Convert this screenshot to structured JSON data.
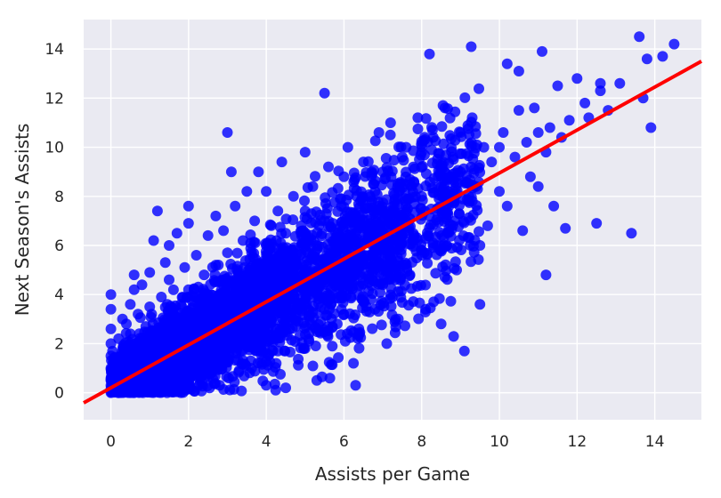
{
  "chart_data": {
    "type": "scatter",
    "title": "",
    "xlabel": "Assists per Game",
    "ylabel": "Next Season's Assists",
    "xlim": [
      -0.7,
      15.2
    ],
    "ylim": [
      -1.1,
      15.2
    ],
    "xticks": [
      "0",
      "2",
      "4",
      "6",
      "8",
      "10",
      "12",
      "14"
    ],
    "yticks": [
      "0",
      "2",
      "4",
      "6",
      "8",
      "10",
      "12",
      "14"
    ],
    "grid": true,
    "legend": "none",
    "point_color": "#0000ff",
    "line_color": "#ff0000",
    "background": "#eaeaf2",
    "regression_line": {
      "intercept": 0.2,
      "slope": 0.875
    },
    "series": [
      {
        "points": [
          [
            0.0,
            0.0
          ],
          [
            0.0,
            0.5
          ],
          [
            0.0,
            1.0
          ],
          [
            0.0,
            1.5
          ],
          [
            0.0,
            2.0
          ],
          [
            0.0,
            2.6
          ],
          [
            0.0,
            3.4
          ],
          [
            0.0,
            4.0
          ],
          [
            0.2,
            0.2
          ],
          [
            0.2,
            1.2
          ],
          [
            0.2,
            2.2
          ],
          [
            0.3,
            0.6
          ],
          [
            0.3,
            3.0
          ],
          [
            0.4,
            1.6
          ],
          [
            0.4,
            2.8
          ],
          [
            0.5,
            0.3
          ],
          [
            0.5,
            1.0
          ],
          [
            0.5,
            2.4
          ],
          [
            0.5,
            3.6
          ],
          [
            0.6,
            4.2
          ],
          [
            0.6,
            4.8
          ],
          [
            0.7,
            0.7
          ],
          [
            0.7,
            1.9
          ],
          [
            0.7,
            3.2
          ],
          [
            0.8,
            4.4
          ],
          [
            0.8,
            0.1
          ],
          [
            0.9,
            2.7
          ],
          [
            1.0,
            1.0
          ],
          [
            1.0,
            3.5
          ],
          [
            1.0,
            4.9
          ],
          [
            1.0,
            0.2
          ],
          [
            1.1,
            6.2
          ],
          [
            1.2,
            7.4
          ],
          [
            1.2,
            2.1
          ],
          [
            1.3,
            3.9
          ],
          [
            1.4,
            5.3
          ],
          [
            1.5,
            0.5
          ],
          [
            1.5,
            1.6
          ],
          [
            1.5,
            4.6
          ],
          [
            1.5,
            6.0
          ],
          [
            1.6,
            2.9
          ],
          [
            1.7,
            6.5
          ],
          [
            1.8,
            3.6
          ],
          [
            1.8,
            0.8
          ],
          [
            1.9,
            5.1
          ],
          [
            2.0,
            2.0
          ],
          [
            2.0,
            4.2
          ],
          [
            2.0,
            6.9
          ],
          [
            2.0,
            7.6
          ],
          [
            2.1,
            1.2
          ],
          [
            2.2,
            3.0
          ],
          [
            2.2,
            5.6
          ],
          [
            2.3,
            0.4
          ],
          [
            2.4,
            4.8
          ],
          [
            2.5,
            2.5
          ],
          [
            2.5,
            6.4
          ],
          [
            2.5,
            3.6
          ],
          [
            2.6,
            1.5
          ],
          [
            2.7,
            5.2
          ],
          [
            2.7,
            7.2
          ],
          [
            2.8,
            0.3
          ],
          [
            2.8,
            4.0
          ],
          [
            2.9,
            6.6
          ],
          [
            3.0,
            3.0
          ],
          [
            3.0,
            10.6
          ],
          [
            3.0,
            1.9
          ],
          [
            3.0,
            5.7
          ],
          [
            3.1,
            9.0
          ],
          [
            3.2,
            7.6
          ],
          [
            3.2,
            4.4
          ],
          [
            3.3,
            0.9
          ],
          [
            3.3,
            2.5
          ],
          [
            3.4,
            6.2
          ],
          [
            3.5,
            8.2
          ],
          [
            3.5,
            3.4
          ],
          [
            3.6,
            5.0
          ],
          [
            3.6,
            1.3
          ],
          [
            3.7,
            7.0
          ],
          [
            3.8,
            4.6
          ],
          [
            3.8,
            9.0
          ],
          [
            3.9,
            2.2
          ],
          [
            4.0,
            4.0
          ],
          [
            4.0,
            6.0
          ],
          [
            4.0,
            8.2
          ],
          [
            4.0,
            0.3
          ],
          [
            4.1,
            3.0
          ],
          [
            4.2,
            5.4
          ],
          [
            4.3,
            7.4
          ],
          [
            4.3,
            1.7
          ],
          [
            4.4,
            9.4
          ],
          [
            4.5,
            4.2
          ],
          [
            4.5,
            6.5
          ],
          [
            4.5,
            0.2
          ],
          [
            4.6,
            2.6
          ],
          [
            4.7,
            8.0
          ],
          [
            4.8,
            5.2
          ],
          [
            4.8,
            3.4
          ],
          [
            4.9,
            6.8
          ],
          [
            5.0,
            5.0
          ],
          [
            5.0,
            7.4
          ],
          [
            5.0,
            9.8
          ],
          [
            5.0,
            1.8
          ],
          [
            5.1,
            4.0
          ],
          [
            5.2,
            8.4
          ],
          [
            5.3,
            0.5
          ],
          [
            5.3,
            6.0
          ],
          [
            5.4,
            2.9
          ],
          [
            5.5,
            12.2
          ],
          [
            5.5,
            7.0
          ],
          [
            5.5,
            4.6
          ],
          [
            5.6,
            9.2
          ],
          [
            5.7,
            1.9
          ],
          [
            5.8,
            5.6
          ],
          [
            5.9,
            7.9
          ],
          [
            6.0,
            6.0
          ],
          [
            6.0,
            3.2
          ],
          [
            6.0,
            8.8
          ],
          [
            6.1,
            10.0
          ],
          [
            6.2,
            4.8
          ],
          [
            6.3,
            7.2
          ],
          [
            6.3,
            0.3
          ],
          [
            6.4,
            2.4
          ],
          [
            6.5,
            9.4
          ],
          [
            6.5,
            5.4
          ],
          [
            6.6,
            6.8
          ],
          [
            6.7,
            3.8
          ],
          [
            6.8,
            8.2
          ],
          [
            6.9,
            10.6
          ],
          [
            7.0,
            7.0
          ],
          [
            7.0,
            4.4
          ],
          [
            7.0,
            9.0
          ],
          [
            7.1,
            2.0
          ],
          [
            7.2,
            11.0
          ],
          [
            7.2,
            5.8
          ],
          [
            7.3,
            7.8
          ],
          [
            7.4,
            3.0
          ],
          [
            7.5,
            9.6
          ],
          [
            7.5,
            6.4
          ],
          [
            7.6,
            10.0
          ],
          [
            7.7,
            4.8
          ],
          [
            7.8,
            8.6
          ],
          [
            7.9,
            11.2
          ],
          [
            8.0,
            8.0
          ],
          [
            8.0,
            5.6
          ],
          [
            8.0,
            9.8
          ],
          [
            8.1,
            3.4
          ],
          [
            8.2,
            13.8
          ],
          [
            8.2,
            7.2
          ],
          [
            8.3,
            10.4
          ],
          [
            8.4,
            6.0
          ],
          [
            8.5,
            8.8
          ],
          [
            8.5,
            2.8
          ],
          [
            8.6,
            11.6
          ],
          [
            8.7,
            7.6
          ],
          [
            8.8,
            9.6
          ],
          [
            8.9,
            5.0
          ],
          [
            9.0,
            9.0
          ],
          [
            9.0,
            10.6
          ],
          [
            9.1,
            1.7
          ],
          [
            9.2,
            7.8
          ],
          [
            9.3,
            11.2
          ],
          [
            9.4,
            8.4
          ],
          [
            9.5,
            3.6
          ],
          [
            9.6,
            10.0
          ],
          [
            9.7,
            6.8
          ],
          [
            9.8,
            9.4
          ],
          [
            10.0,
            10.0
          ],
          [
            10.0,
            8.2
          ],
          [
            10.1,
            10.6
          ],
          [
            10.2,
            7.6
          ],
          [
            10.2,
            13.4
          ],
          [
            10.4,
            9.6
          ],
          [
            10.5,
            13.1
          ],
          [
            10.5,
            11.5
          ],
          [
            10.6,
            6.6
          ],
          [
            10.7,
            10.2
          ],
          [
            10.8,
            8.8
          ],
          [
            10.9,
            11.6
          ],
          [
            11.0,
            10.6
          ],
          [
            11.0,
            8.4
          ],
          [
            11.1,
            13.9
          ],
          [
            11.2,
            4.8
          ],
          [
            11.2,
            9.8
          ],
          [
            11.3,
            10.8
          ],
          [
            11.4,
            7.6
          ],
          [
            11.5,
            12.5
          ],
          [
            11.6,
            10.4
          ],
          [
            11.7,
            6.7
          ],
          [
            11.8,
            11.1
          ],
          [
            12.0,
            12.8
          ],
          [
            12.2,
            11.8
          ],
          [
            12.3,
            11.2
          ],
          [
            12.6,
            12.3
          ],
          [
            12.6,
            12.6
          ],
          [
            12.5,
            6.9
          ],
          [
            12.8,
            11.5
          ],
          [
            13.1,
            12.6
          ],
          [
            13.4,
            6.5
          ],
          [
            13.6,
            14.5
          ],
          [
            13.7,
            12.0
          ],
          [
            13.8,
            13.6
          ],
          [
            13.9,
            10.8
          ],
          [
            14.2,
            13.7
          ],
          [
            14.5,
            14.2
          ]
        ]
      }
    ]
  }
}
